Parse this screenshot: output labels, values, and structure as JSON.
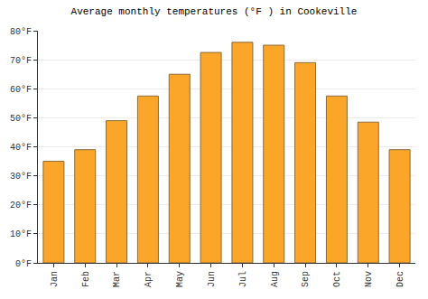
{
  "chart_data": {
    "type": "bar",
    "title": "Average monthly temperatures (°F ) in Cookeville",
    "categories": [
      "Jan",
      "Feb",
      "Mar",
      "Apr",
      "May",
      "Jun",
      "Jul",
      "Aug",
      "Sep",
      "Oct",
      "Nov",
      "Dec"
    ],
    "values": [
      35,
      39,
      49,
      57.5,
      65,
      72.5,
      76,
      75,
      69,
      57.5,
      48.5,
      39
    ],
    "color": "#fca629",
    "ylim": [
      0,
      80
    ],
    "yticks": [
      {
        "value": 0,
        "label": "0°F"
      },
      {
        "value": 10,
        "label": "10°F"
      },
      {
        "value": 20,
        "label": "20°F"
      },
      {
        "value": 30,
        "label": "30°F"
      },
      {
        "value": 40,
        "label": "40°F"
      },
      {
        "value": 50,
        "label": "50°F"
      },
      {
        "value": 60,
        "label": "60°F"
      },
      {
        "value": 70,
        "label": "70°F"
      },
      {
        "value": 80,
        "label": "80°F"
      }
    ],
    "grid": true
  }
}
